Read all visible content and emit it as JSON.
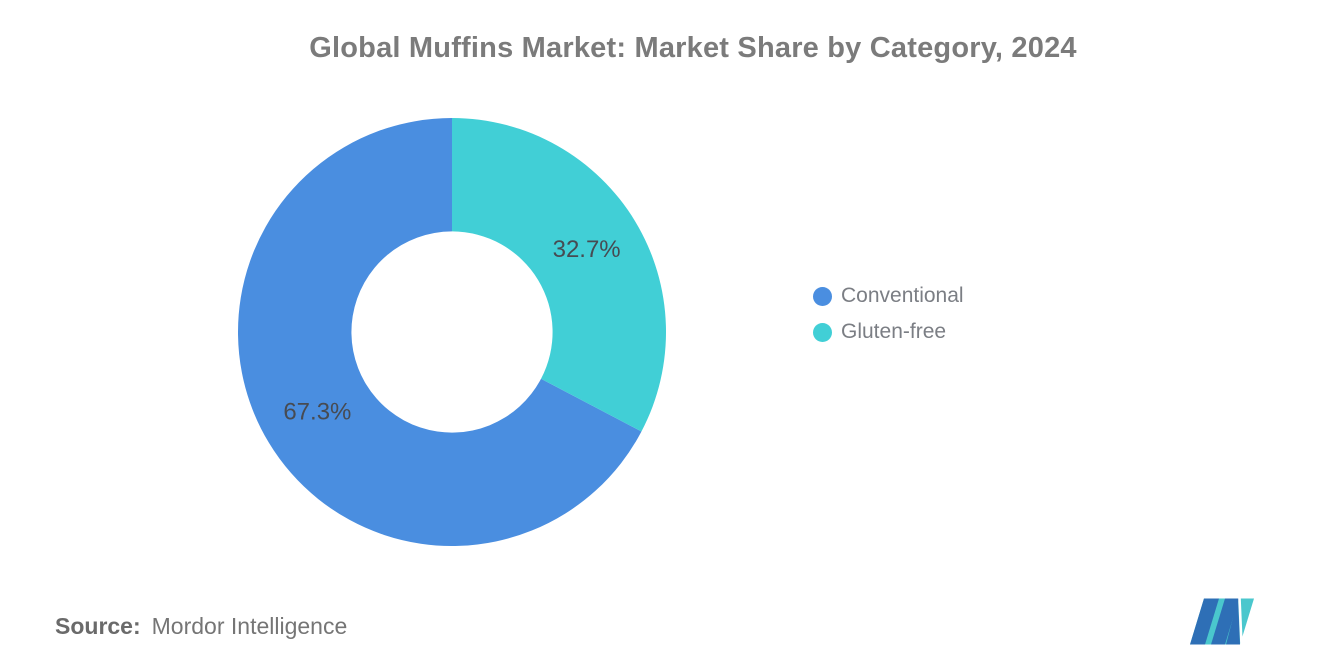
{
  "header": {
    "title": "Global Muffins Market: Market Share by Category, 2024"
  },
  "chart_data": {
    "type": "pie",
    "subtype": "donut",
    "title": "Global Muffins Market: Market Share by Category, 2024",
    "categories": [
      "Conventional",
      "Gluten-free"
    ],
    "values": [
      67.3,
      32.7
    ],
    "unit": "%",
    "slices": [
      {
        "label": "Conventional",
        "value": 67.3,
        "value_label": "67.3%",
        "color": "#4a8ee0"
      },
      {
        "label": "Gluten-free",
        "value": 32.7,
        "value_label": "32.7%",
        "color": "#41cfd6"
      }
    ],
    "start_angle_deg": 0,
    "direction": "counterclockwise",
    "donut_hole_ratio": 0.47,
    "slice_label_color": "#474b52",
    "legend_position": "right",
    "background": "#ffffff"
  },
  "footer": {
    "source_label": "Source:",
    "source_value": "Mordor Intelligence"
  },
  "brand": {
    "logo_name": "mordor-intelligence-logo",
    "logo_blue": "#2e6fb6",
    "logo_teal": "#4ac7cd"
  }
}
